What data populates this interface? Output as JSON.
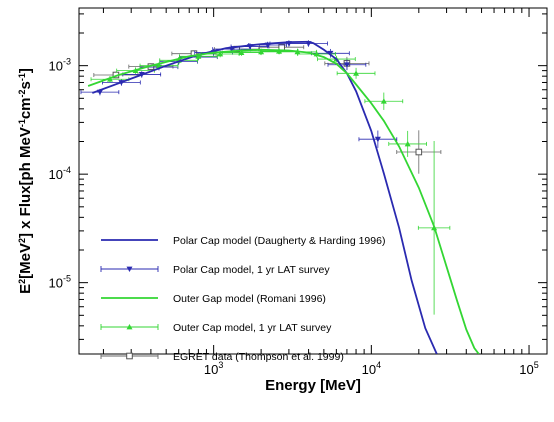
{
  "chart_data": {
    "type": "line",
    "xlabel": "Energy [MeV]",
    "ylabel": {
      "main": "E",
      "sup1": "2",
      "mid": "[MeV",
      "sup2": "2",
      "mid2": "] x Flux[ph MeV",
      "sup3": "-1",
      "mid3": "cm",
      "sup4": "-2",
      "mid4": "s",
      "sup5": "-1",
      "end": "]"
    },
    "x_scale": "log",
    "y_scale": "log",
    "xlim": [
      140,
      130000
    ],
    "ylim": [
      2.2e-06,
      0.0034
    ],
    "x_ticks": [
      {
        "value": 1000,
        "base": "10",
        "exp": "3"
      },
      {
        "value": 10000,
        "base": "10",
        "exp": "4"
      },
      {
        "value": 100000,
        "base": "10",
        "exp": "5"
      }
    ],
    "y_ticks": [
      {
        "value": 0.001,
        "base": "10",
        "exp": "-3"
      },
      {
        "value": 0.0001,
        "base": "10",
        "exp": "-4"
      },
      {
        "value": 1e-05,
        "base": "10",
        "exp": "-5"
      }
    ],
    "legend_position": "bottom-left",
    "series": [
      {
        "name": "Polar Cap model (Daugherty & Harding 1996)",
        "color": "#2a2ab0",
        "style": "line",
        "x": [
          170,
          300,
          500,
          800,
          1200,
          2000,
          3000,
          4000,
          4300,
          5000,
          6000,
          7000,
          8000,
          10000,
          12000,
          15000,
          18000,
          22000,
          26000
        ],
        "y": [
          0.00056,
          0.00076,
          0.001,
          0.00126,
          0.00145,
          0.00158,
          0.00165,
          0.00166,
          0.00161,
          0.0014,
          0.00115,
          0.00085,
          0.00058,
          0.00025,
          0.000102,
          3.2e-05,
          1.05e-05,
          3.8e-06,
          2.2e-06
        ]
      },
      {
        "name": "Polar Cap model, 1 yr LAT survey",
        "color": "#2a2ab0",
        "style": "markers",
        "marker": "triangle-down",
        "x": [
          190,
          260,
          350,
          450,
          600,
          800,
          1000,
          1300,
          1700,
          2200,
          3000,
          4000,
          5500,
          7000,
          11000
        ],
        "y": [
          0.00057,
          0.0007,
          0.00083,
          0.00097,
          0.00109,
          0.0012,
          0.00132,
          0.00142,
          0.0015,
          0.00155,
          0.0016,
          0.0016,
          0.0013,
          0.00102,
          0.00021
        ],
        "xerr": [
          0.12,
          0.12,
          0.12,
          0.12,
          0.12,
          0.12,
          0.12,
          0.12,
          0.12,
          0.12,
          0.12,
          0.12,
          0.12,
          0.12,
          0.12
        ],
        "yerr": [
          0.03,
          0.03,
          0.03,
          0.03,
          0.03,
          0.03,
          0.03,
          0.03,
          0.03,
          0.03,
          0.03,
          0.03,
          0.04,
          0.05,
          0.08
        ]
      },
      {
        "name": "Outer Gap model (Romani 1996)",
        "color": "#33d633",
        "style": "line",
        "x": [
          160,
          250,
          400,
          700,
          1000,
          1500,
          2000,
          3000,
          4000,
          5000,
          6000,
          7000,
          8000,
          10000,
          12000,
          15000,
          20000,
          25000,
          30000,
          35000,
          40000,
          45000,
          48000
        ],
        "y": [
          0.00065,
          0.00082,
          0.001,
          0.00122,
          0.00132,
          0.00138,
          0.0014,
          0.00138,
          0.00132,
          0.0012,
          0.00104,
          0.00085,
          0.00067,
          0.00045,
          0.00031,
          0.00018,
          7.5e-05,
          3.3e-05,
          1.4e-05,
          6.8e-06,
          3.7e-06,
          2.5e-06,
          2.2e-06
        ]
      },
      {
        "name": "Outer Cap model, 1 yr LAT survey",
        "color": "#33d633",
        "style": "markers",
        "marker": "triangle-up",
        "x": [
          220,
          320,
          450,
          600,
          800,
          1100,
          1500,
          2000,
          2600,
          3400,
          4500,
          6000,
          8000,
          12000,
          17000,
          25000
        ],
        "y": [
          0.00075,
          0.0009,
          0.001,
          0.00112,
          0.00122,
          0.00128,
          0.00132,
          0.00134,
          0.00136,
          0.00134,
          0.00128,
          0.00115,
          0.00085,
          0.00047,
          0.00019,
          3.2e-05
        ],
        "xerr": [
          0.12,
          0.12,
          0.12,
          0.12,
          0.12,
          0.12,
          0.12,
          0.12,
          0.12,
          0.12,
          0.12,
          0.12,
          0.12,
          0.12,
          0.12,
          0.1
        ],
        "yerr": [
          0.03,
          0.03,
          0.03,
          0.03,
          0.03,
          0.03,
          0.03,
          0.03,
          0.03,
          0.03,
          0.03,
          0.03,
          0.05,
          0.08,
          0.12,
          0.8
        ]
      },
      {
        "name": "EGRET data (Thompson et al. 1999)",
        "color": "#555555",
        "style": "markers",
        "marker": "square-open",
        "x": [
          240,
          400,
          750,
          1400,
          2700,
          7000,
          20000
        ],
        "y": [
          0.00082,
          0.00098,
          0.00129,
          0.00142,
          0.00148,
          0.00105,
          0.00016
        ],
        "xerr": [
          0.14,
          0.14,
          0.14,
          0.14,
          0.14,
          0.14,
          0.14
        ],
        "yerr": [
          0.03,
          0.03,
          0.03,
          0.03,
          0.03,
          0.06,
          0.2
        ]
      }
    ]
  }
}
